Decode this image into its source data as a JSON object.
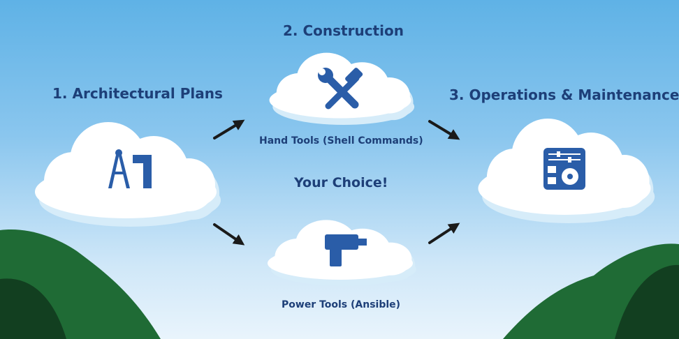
{
  "steps": {
    "plans": {
      "title": "1. Architectural Plans",
      "icon": "drafting-compass-ruler-icon"
    },
    "construction": {
      "title": "2. Construction",
      "icon": "wrench-hammer-icon"
    },
    "operations": {
      "title": "3. Operations & Maintenance",
      "icon": "control-panel-gear-icon"
    }
  },
  "tools": {
    "hand": {
      "label": "Hand Tools (Shell Commands)"
    },
    "power": {
      "label": "Power Tools (Ansible)",
      "icon": "power-drill-icon"
    }
  },
  "choice_label": "Your Choice!",
  "colors": {
    "sky_top": "#5fb2e6",
    "sky_bottom": "#e9f4fc",
    "cloud": "#ffffff",
    "cloud_shadow": "#d6ecf9",
    "icon": "#2a5da8",
    "text": "#1d3f78",
    "hill": "#1f6b35",
    "hill_dark": "#123f20"
  }
}
